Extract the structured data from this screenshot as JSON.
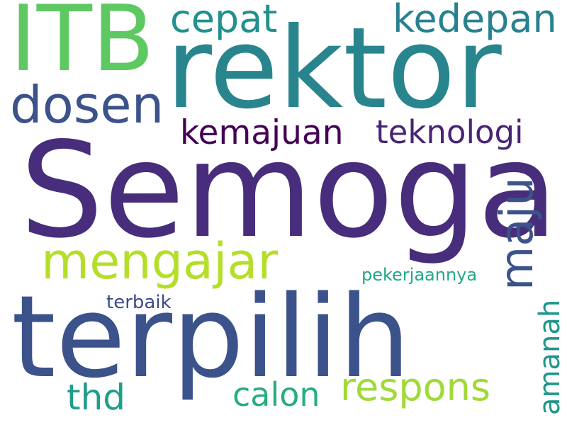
{
  "word_cloud": {
    "words": {
      "semoga": {
        "text": "Semoga",
        "color": "#472d7b"
      },
      "terpilih": {
        "text": "terpilih",
        "color": "#3b528b"
      },
      "rektor": {
        "text": "rektor",
        "color": "#29858d"
      },
      "itb": {
        "text": "ITB",
        "color": "#5ec962"
      },
      "dosen": {
        "text": "dosen",
        "color": "#3b528b"
      },
      "mengajar": {
        "text": "mengajar",
        "color": "#b5de2b"
      },
      "maju": {
        "text": "maju",
        "color": "#3b528b"
      },
      "kedepan": {
        "text": "kedepan",
        "color": "#26828e"
      },
      "cepat": {
        "text": "cepat",
        "color": "#21918c"
      },
      "kemajuan": {
        "text": "kemajuan",
        "color": "#440154"
      },
      "teknologi": {
        "text": "teknologi",
        "color": "#482475"
      },
      "respons": {
        "text": "respons",
        "color": "#a0da39"
      },
      "thd": {
        "text": "thd",
        "color": "#1f9e89"
      },
      "calon": {
        "text": "calon",
        "color": "#27ad81"
      },
      "amanah": {
        "text": "amanah",
        "color": "#1f968b"
      },
      "pekerjaannya": {
        "text": "pekerjaannya",
        "color": "#22a884"
      },
      "terbaik": {
        "text": "terbaik",
        "color": "#3e4a89"
      }
    }
  }
}
